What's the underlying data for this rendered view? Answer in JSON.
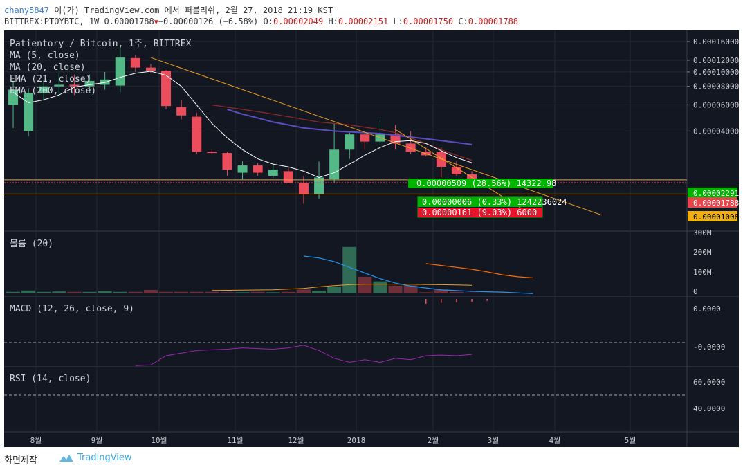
{
  "header": {
    "user": "chany5847",
    "published": "이(가) TradingView.com 에서 퍼블리쉬, 2월 27, 2018 21:19 KST",
    "symbol_line": "BITTREX:PTOYBTC, 1W 0.00001788",
    "change": "−0.00000126 (−6.58%)",
    "o_label": "O:",
    "o_value": "0.00002049",
    "h_label": "H:",
    "h_value": "0.00002151",
    "l_label": "L:",
    "l_value": "0.00001750",
    "c_label": "C:",
    "c_value": "0.00001788"
  },
  "footer": {
    "snapshot": "화면제작",
    "brand": "TradingView"
  },
  "colors": {
    "bg": "#131722",
    "up": "#53b987",
    "down": "#eb4d5c",
    "ma5": "#ffffff",
    "ma20": "#8a2a2a",
    "ema21": "#5a4dc0",
    "ema200": "#f0a020",
    "macd": "#2196f3",
    "signal": "#ff6d00",
    "rsi": "#9c27b0"
  },
  "chart_data": [
    {
      "type": "candlestick",
      "title": "Patientory / Bitcoin, 1주, BITTREX",
      "legend": [
        "MA (5, close)",
        "MA (20, close)",
        "EMA (21, close)",
        "EMA (200, close)"
      ],
      "x_ticks": [
        "8월",
        "9월",
        "10월",
        "11월",
        "12월",
        "2018",
        "2월",
        "3월",
        "4월",
        "5월"
      ],
      "y_ticks": [
        "0.00016000",
        "0.00012000",
        "0.00010000",
        "0.00008000",
        "0.00006000",
        "0.00004000"
      ],
      "y_scale": "log",
      "ylim": [
        8.5e-06,
        0.00019
      ],
      "price_labels": [
        {
          "text": "0.00002291",
          "color": "#00b400"
        },
        {
          "text": "0.00001788",
          "color": "#e8454b"
        },
        {
          "text": "0.00001008",
          "color": "#f0b010"
        }
      ],
      "candles": [
        {
          "o": 6e-05,
          "h": 8.6e-05,
          "l": 4.2e-05,
          "c": 7.6e-05
        },
        {
          "o": 4e-05,
          "h": 7.8e-05,
          "l": 3.7e-05,
          "c": 7.2e-05
        },
        {
          "o": 7.2e-05,
          "h": 8.8e-05,
          "l": 6.4e-05,
          "c": 8e-05
        },
        {
          "o": 8e-05,
          "h": 9.8e-05,
          "l": 7e-05,
          "c": 8.2e-05
        },
        {
          "o": 8.2e-05,
          "h": 9.6e-05,
          "l": 7e-05,
          "c": 8e-05
        },
        {
          "o": 8e-05,
          "h": 9.6e-05,
          "l": 7.2e-05,
          "c": 8.7e-05
        },
        {
          "o": 8.2e-05,
          "h": 0.0001,
          "l": 7.6e-05,
          "c": 8.9e-05
        },
        {
          "o": 8.1e-05,
          "h": 0.00015,
          "l": 7.3e-05,
          "c": 0.000125
        },
        {
          "o": 0.000124,
          "h": 0.00013,
          "l": 0.0001,
          "c": 0.000107
        },
        {
          "o": 0.000107,
          "h": 0.000113,
          "l": 9.8e-05,
          "c": 0.000102
        },
        {
          "o": 0.000102,
          "h": 0.000103,
          "l": 5.6e-05,
          "c": 5.9e-05
        },
        {
          "o": 5.8e-05,
          "h": 6.5e-05,
          "l": 4.8e-05,
          "c": 5.1e-05
        },
        {
          "o": 5e-05,
          "h": 5.3e-05,
          "l": 2.8e-05,
          "c": 2.9e-05
        },
        {
          "o": 2.9e-05,
          "h": 3e-05,
          "l": 2.8e-05,
          "c": 2.85e-05
        },
        {
          "o": 2.85e-05,
          "h": 2.9e-05,
          "l": 2e-05,
          "c": 2.2e-05
        },
        {
          "o": 2.1e-05,
          "h": 2.5e-05,
          "l": 1.9e-05,
          "c": 2.35e-05
        },
        {
          "o": 2.35e-05,
          "h": 2.45e-05,
          "l": 2e-05,
          "c": 2.1e-05
        },
        {
          "o": 2e-05,
          "h": 2.4e-05,
          "l": 1.95e-05,
          "c": 2.2e-05
        },
        {
          "o": 2.15e-05,
          "h": 2.3e-05,
          "l": 1.8e-05,
          "c": 1.8e-05
        },
        {
          "o": 1.8e-05,
          "h": 2e-05,
          "l": 1.3e-05,
          "c": 1.5e-05
        },
        {
          "o": 1.5e-05,
          "h": 2.5e-05,
          "l": 1.4e-05,
          "c": 1.95e-05
        },
        {
          "o": 1.9e-05,
          "h": 4.5e-05,
          "l": 1.8e-05,
          "c": 3e-05
        },
        {
          "o": 3e-05,
          "h": 4e-05,
          "l": 2.6e-05,
          "c": 3.8e-05
        },
        {
          "o": 3.8e-05,
          "h": 4e-05,
          "l": 3e-05,
          "c": 3.4e-05
        },
        {
          "o": 3.4e-05,
          "h": 4.8e-05,
          "l": 3.2e-05,
          "c": 3.8e-05
        },
        {
          "o": 3.8e-05,
          "h": 4.4e-05,
          "l": 3e-05,
          "c": 3.3e-05
        },
        {
          "o": 3.3e-05,
          "h": 4e-05,
          "l": 2.8e-05,
          "c": 2.9e-05
        },
        {
          "o": 2.9e-05,
          "h": 3.1e-05,
          "l": 2.7e-05,
          "c": 2.75e-05
        },
        {
          "o": 2.9e-05,
          "h": 3.1e-05,
          "l": 1.95e-05,
          "c": 2.3e-05
        },
        {
          "o": 2.3e-05,
          "h": 2.5e-05,
          "l": 2e-05,
          "c": 2.05e-05
        },
        {
          "o": 2.05e-05,
          "h": 2.15e-05,
          "l": 1.75e-05,
          "c": 1.79e-05
        }
      ],
      "ma5": [
        7.3e-05,
        6.2e-05,
        6.5e-05,
        7e-05,
        7.9e-05,
        8.2e-05,
        8.5e-05,
        9.2e-05,
        9.8e-05,
        0.000101,
        9.5e-05,
        8e-05,
        6e-05,
        4.5e-05,
        3.6e-05,
        3e-05,
        2.6e-05,
        2.4e-05,
        2.3e-05,
        2.15e-05,
        1.95e-05,
        2.1e-05,
        2.4e-05,
        2.75e-05,
        3.1e-05,
        3.4e-05,
        3.45e-05,
        3.3e-05,
        2.95e-05,
        2.65e-05,
        2.45e-05
      ],
      "ma20": [
        null,
        null,
        null,
        null,
        null,
        null,
        null,
        null,
        null,
        null,
        null,
        null,
        null,
        6e-05,
        5.8e-05,
        5.6e-05,
        5.4e-05,
        5.2e-05,
        5e-05,
        4.8e-05,
        4.6e-05,
        4.5e-05,
        4.4e-05,
        4.25e-05,
        4.1e-05,
        3.9e-05,
        3.6e-05,
        3.3e-05,
        3e-05,
        2.75e-05,
        2.55e-05
      ],
      "ema21": [
        null,
        null,
        null,
        null,
        null,
        null,
        null,
        null,
        null,
        null,
        null,
        null,
        null,
        null,
        5.6e-05,
        5.2e-05,
        4.9e-05,
        4.6e-05,
        4.4e-05,
        4.2e-05,
        4.1e-05,
        4e-05,
        3.95e-05,
        3.9e-05,
        3.85e-05,
        3.75e-05,
        3.65e-05,
        3.55e-05,
        3.45e-05,
        3.35e-05,
        3.25e-05
      ],
      "trendline": [
        {
          "bar": 9,
          "price": 0.000125
        },
        {
          "bar": 38.5,
          "price": 1.09e-05
        }
      ],
      "trendline2": [
        {
          "bar": 25,
          "price": 4.1e-05
        },
        {
          "bar": 34,
          "price": 1.08e-05
        }
      ],
      "hlines": [
        {
          "price": 1.88e-05,
          "color": "#e8a040",
          "dash": false
        },
        {
          "price": 1.8e-05,
          "color": "#e8454b",
          "dash": true
        },
        {
          "price": 1.51e-05,
          "color": "#f0a020",
          "dash": false
        }
      ],
      "annotations": [
        {
          "text": "0.00000509 (28.56%) 14322.98",
          "color": "#00b400"
        },
        {
          "text": "0.00000006 (0.33%) 1242236024",
          "color": "#00b400"
        },
        {
          "text": "0.00000161 (9.03%) 6000",
          "color": "#e8152a"
        }
      ]
    },
    {
      "type": "bar",
      "title": "볼륨 (20)",
      "y_ticks": [
        "300M",
        "200M",
        "100M",
        "0"
      ],
      "ylim": [
        0,
        300
      ],
      "values": [
        8,
        15,
        8,
        10,
        8,
        8,
        12,
        8,
        8,
        18,
        8,
        8,
        8,
        8,
        6,
        6,
        8,
        6,
        8,
        20,
        14,
        36,
        240,
        86,
        62,
        40,
        42,
        6,
        20,
        8,
        4
      ],
      "ma_values": [
        null,
        null,
        null,
        null,
        null,
        null,
        null,
        null,
        null,
        null,
        null,
        null,
        null,
        15,
        16,
        17,
        18,
        19,
        22,
        26,
        34,
        40,
        45,
        48,
        48,
        48,
        47,
        46,
        45,
        44,
        42
      ]
    },
    {
      "type": "line",
      "title": "MACD (12, 26, close, 9)",
      "y_ticks": [
        "0.0000",
        "-0.0000"
      ],
      "macd_x": [
        19,
        20,
        21,
        22,
        23,
        24,
        25,
        26,
        27,
        28,
        29,
        30,
        31,
        32,
        33,
        34
      ],
      "macd": [
        -1.4e-05,
        -1.35e-05,
        -1.25e-05,
        -1.1e-05,
        -9.5e-06,
        -8e-06,
        -6.8e-06,
        -6e-06,
        -5.5e-06,
        -5e-06,
        -4.8e-06,
        -4.6e-06,
        -4.5e-06,
        -4.4e-06,
        -4.2e-06,
        -4e-06
      ],
      "signal_x": [
        27,
        28,
        29,
        30,
        31,
        32,
        33,
        34
      ],
      "signal": [
        -1.2e-05,
        -1.15e-05,
        -1.1e-05,
        -1.05e-05,
        -9.8e-06,
        -9e-06,
        -8.5e-06,
        -8.2e-06
      ],
      "hist_x": [
        27,
        28,
        29,
        30,
        31
      ],
      "hist": [
        5e-06,
        4e-06,
        3.5e-06,
        3e-06,
        2e-06
      ]
    },
    {
      "type": "line",
      "title": "RSI (14, close)",
      "y_ticks": [
        "60.0000",
        "40.0000"
      ],
      "upper": 70,
      "lower": 30,
      "rsi": [
        null,
        null,
        null,
        null,
        null,
        null,
        null,
        null,
        47.5,
        47,
        40,
        38,
        36,
        35.5,
        35,
        34,
        34.5,
        35,
        34,
        32,
        36,
        42,
        45,
        43,
        45,
        42,
        43,
        40,
        39.5,
        40,
        39
      ]
    }
  ]
}
